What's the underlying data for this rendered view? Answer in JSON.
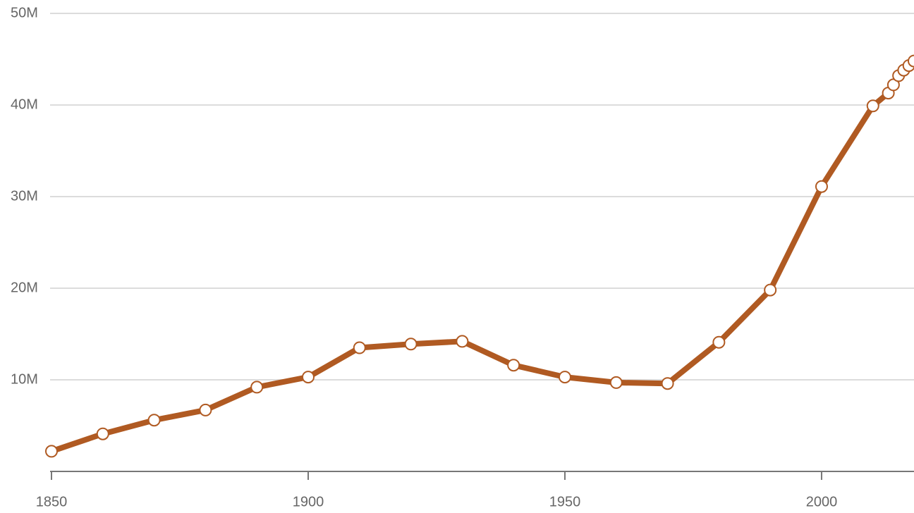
{
  "chart_data": {
    "type": "line",
    "x": [
      1850,
      1860,
      1870,
      1880,
      1890,
      1900,
      1910,
      1920,
      1930,
      1940,
      1950,
      1960,
      1970,
      1980,
      1990,
      2000,
      2010,
      2013,
      2014,
      2015,
      2016,
      2017,
      2018
    ],
    "values": [
      2.2,
      4.1,
      5.6,
      6.7,
      9.2,
      10.3,
      13.5,
      13.9,
      14.2,
      11.6,
      10.3,
      9.7,
      9.6,
      14.1,
      19.8,
      31.1,
      39.9,
      41.3,
      42.2,
      43.2,
      43.8,
      44.3,
      44.8
    ],
    "color": "#b05a22",
    "xlim": [
      1850,
      2018
    ],
    "xticks": [
      1850,
      1900,
      1950,
      2000
    ],
    "ylim": [
      0,
      50
    ],
    "yticks": [
      {
        "value": 10,
        "label": "10M"
      },
      {
        "value": 20,
        "label": "20M"
      },
      {
        "value": 30,
        "label": "30M"
      },
      {
        "value": 40,
        "label": "40M"
      },
      {
        "value": 50,
        "label": "50M"
      }
    ],
    "grid": true
  }
}
